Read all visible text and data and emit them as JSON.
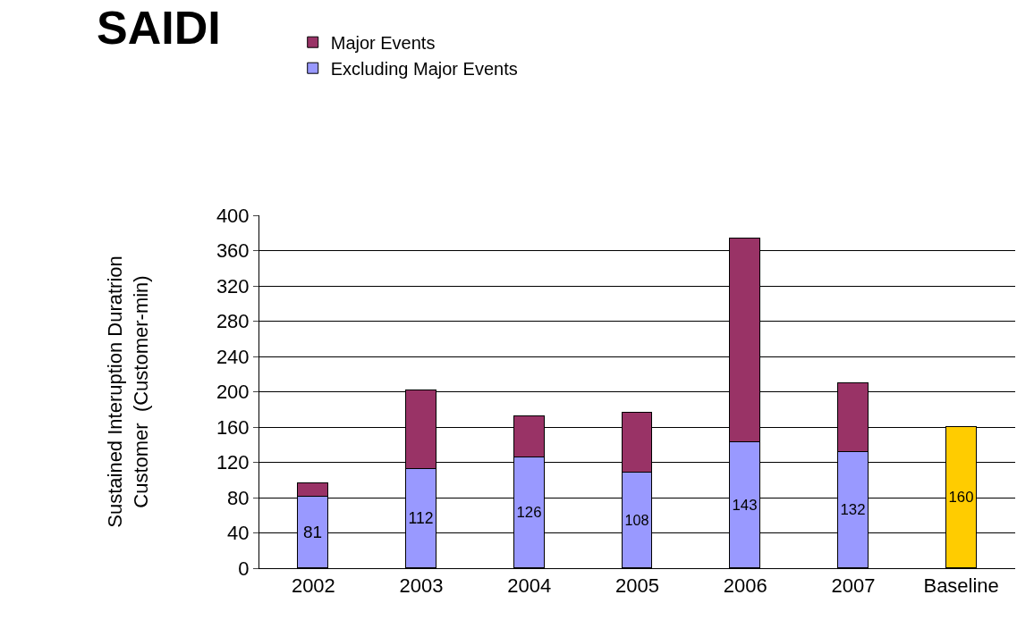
{
  "chart_data": {
    "type": "bar",
    "title": "SAIDI",
    "ylabel": "Sustained Interuption Duratrion\nCustomer  (Customer-min)",
    "categories": [
      "2002",
      "2003",
      "2004",
      "2005",
      "2006",
      "2007",
      "Baseline"
    ],
    "series": [
      {
        "name": "Excluding Major Events",
        "colors": [
          "#9999ff",
          "#9999ff",
          "#9999ff",
          "#9999ff",
          "#9999ff",
          "#9999ff",
          "#ffcc00"
        ],
        "values": [
          81,
          112,
          126,
          108,
          143,
          132,
          160
        ],
        "value_labels": [
          "81",
          "112",
          "126",
          "108",
          "143",
          "132",
          "160"
        ]
      },
      {
        "name": "Major Events",
        "color": "#993366",
        "values": [
          15,
          90,
          46,
          68,
          231,
          78,
          null
        ]
      }
    ],
    "stacked": true,
    "ylim": [
      0,
      400
    ],
    "yticks": [
      0,
      40,
      80,
      120,
      160,
      200,
      240,
      280,
      320,
      360,
      400
    ],
    "grid": "y",
    "legend": "top left"
  }
}
